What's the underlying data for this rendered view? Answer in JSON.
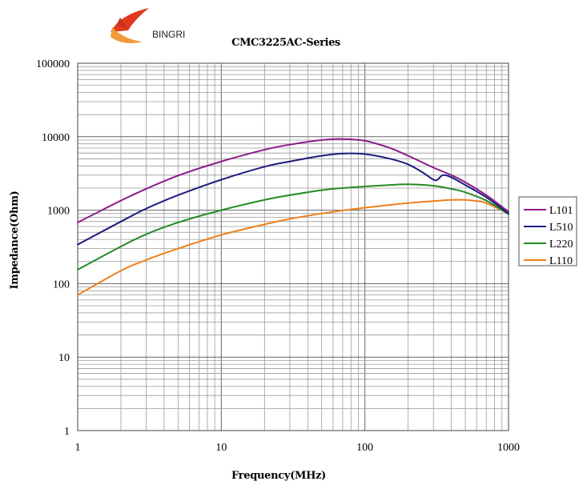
{
  "logo": {
    "text": "BINGRI"
  },
  "colors": {
    "L101": "#8b1a8b",
    "L510": "#1c1c7d",
    "L220": "#228b22",
    "L110": "#ef7f1a",
    "grid": "#9a9a9a",
    "logo_red": "#e03a1c",
    "logo_orange": "#f29a3a"
  },
  "chart_data": {
    "type": "line",
    "title": "CMC3225AC-Series",
    "xlabel": "Frequency(MHz)",
    "ylabel": "Impedance(Ohm)",
    "xscale": "log",
    "yscale": "log",
    "xlim": [
      1,
      1000
    ],
    "ylim": [
      1,
      100000
    ],
    "xticks": [
      "1",
      "10",
      "100",
      "1000"
    ],
    "yticks": [
      "1",
      "10",
      "100",
      "1000",
      "10000",
      "100000"
    ],
    "grid": true,
    "legend_position": "right",
    "series": [
      {
        "name": "L101",
        "x": [
          1,
          2,
          3,
          5,
          10,
          20,
          30,
          50,
          70,
          100,
          150,
          200,
          300,
          400,
          500,
          700,
          1000
        ],
        "y": [
          680,
          1350,
          1950,
          2950,
          4600,
          6650,
          7800,
          9000,
          9300,
          8800,
          7000,
          5500,
          3800,
          3000,
          2400,
          1600,
          950
        ]
      },
      {
        "name": "L510",
        "x": [
          1,
          2,
          3,
          5,
          10,
          20,
          30,
          50,
          70,
          100,
          150,
          200,
          250,
          300,
          320,
          350,
          400,
          500,
          700,
          1000
        ],
        "y": [
          340,
          700,
          1050,
          1600,
          2600,
          3900,
          4600,
          5500,
          5900,
          5800,
          5000,
          4200,
          3300,
          2600,
          2600,
          3000,
          2800,
          2200,
          1500,
          900
        ]
      },
      {
        "name": "L220",
        "x": [
          1,
          2,
          3,
          5,
          10,
          20,
          30,
          50,
          70,
          100,
          150,
          200,
          300,
          400,
          500,
          700,
          1000
        ],
        "y": [
          155,
          320,
          470,
          680,
          1000,
          1380,
          1600,
          1870,
          2000,
          2100,
          2200,
          2250,
          2150,
          1950,
          1750,
          1350,
          880
        ]
      },
      {
        "name": "L110",
        "x": [
          1,
          2,
          3,
          5,
          10,
          20,
          30,
          50,
          70,
          100,
          150,
          200,
          300,
          400,
          500,
          600,
          700,
          1000
        ],
        "y": [
          70,
          150,
          210,
          300,
          460,
          640,
          760,
          900,
          990,
          1080,
          1180,
          1250,
          1330,
          1380,
          1380,
          1330,
          1250,
          900
        ]
      }
    ]
  }
}
